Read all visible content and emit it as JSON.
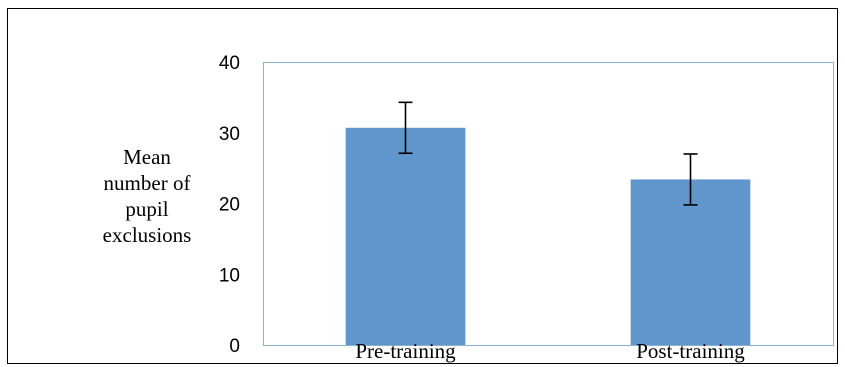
{
  "chart_data": {
    "type": "bar",
    "title": "",
    "xlabel": "",
    "ylabel": "Mean\nnumber of\npupil\nexclusions",
    "categories": [
      "Pre-training",
      "Post-training"
    ],
    "series": [
      {
        "values": [
          30.7,
          23.4
        ],
        "error": [
          3.6,
          3.6
        ]
      }
    ],
    "ylim": [
      0,
      40
    ],
    "yticks": [
      0,
      10,
      20,
      30,
      40
    ],
    "grid": false,
    "legend": "none",
    "bar_color": "#6096cc",
    "axis_color": "#8ab0d6"
  }
}
